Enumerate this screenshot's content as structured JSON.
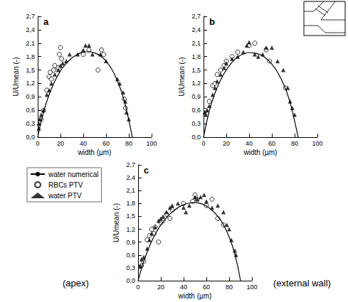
{
  "chart_data": [
    {
      "type": "scatter",
      "title": "a",
      "xlabel": "width (µm)",
      "ylabel": "U/Umean (-)",
      "xlim": [
        0,
        100
      ],
      "xticks": [
        0,
        20,
        40,
        60,
        80,
        100
      ],
      "ylim": [
        0,
        2.7
      ],
      "yticks": [
        {
          "value": 0,
          "label": "0,0"
        },
        {
          "value": 0.3,
          "label": "0,3"
        },
        {
          "value": 0.6,
          "label": "0,6"
        },
        {
          "value": 0.9,
          "label": "0,9"
        },
        {
          "value": 1.2,
          "label": "1,2"
        },
        {
          "value": 1.5,
          "label": "1,5"
        },
        {
          "value": 1.8,
          "label": "1,8"
        },
        {
          "value": 2.1,
          "label": "2,1"
        },
        {
          "value": 2.4,
          "label": "2,4"
        },
        {
          "value": 2.7,
          "label": "2,7"
        }
      ],
      "grid": false,
      "series": [
        {
          "name": "water numerical",
          "type": "line",
          "color": "#000000",
          "line_style": "solid",
          "x": [
            0,
            5,
            10,
            15,
            20,
            25,
            30,
            35,
            40,
            45,
            50,
            55,
            60,
            65,
            70,
            75,
            80,
            83
          ],
          "values": [
            0,
            0.55,
            0.95,
            1.25,
            1.48,
            1.65,
            1.77,
            1.85,
            1.9,
            1.91,
            1.88,
            1.82,
            1.7,
            1.52,
            1.25,
            0.9,
            0.38,
            0
          ]
        },
        {
          "name": "RBCs PTV",
          "type": "scatter",
          "color": "#000000",
          "marker": "open circle",
          "x": [
            3,
            5,
            8,
            10,
            11,
            12,
            14,
            15,
            18,
            19,
            20,
            21,
            40,
            45,
            53,
            56,
            58,
            76,
            77
          ],
          "values": [
            0.4,
            0.6,
            1.05,
            1.35,
            1.45,
            1.3,
            1.5,
            1.6,
            1.55,
            1.85,
            2.0,
            1.75,
            1.85,
            1.95,
            1.5,
            1.95,
            1.85,
            0.85,
            0.65
          ]
        },
        {
          "name": "water PTV",
          "type": "scatter",
          "color": "#000000",
          "marker": "filled triangle",
          "x": [
            1,
            1,
            2,
            3,
            5,
            8,
            10,
            12,
            15,
            18,
            20,
            22,
            25,
            28,
            35,
            40,
            42,
            45,
            48,
            55,
            60,
            70,
            72,
            75,
            77,
            78,
            80
          ],
          "values": [
            0.3,
            0.2,
            0.4,
            0.5,
            0.6,
            0.95,
            1.05,
            1.2,
            1.4,
            1.5,
            1.6,
            1.65,
            1.7,
            1.85,
            1.85,
            1.95,
            2.05,
            2.05,
            1.85,
            1.85,
            1.7,
            1.3,
            1.2,
            1.0,
            0.8,
            0.55,
            0.4
          ]
        }
      ]
    },
    {
      "type": "scatter",
      "title": "b",
      "xlabel": "width (µm)",
      "ylabel": "U/Umean (-)",
      "xlim": [
        0,
        100
      ],
      "xticks": [
        0,
        20,
        40,
        60,
        80,
        100
      ],
      "ylim": [
        0,
        2.7
      ],
      "yticks": [
        {
          "value": 0,
          "label": "0,0"
        },
        {
          "value": 0.3,
          "label": "0,3"
        },
        {
          "value": 0.6,
          "label": "0,6"
        },
        {
          "value": 0.9,
          "label": "0,9"
        },
        {
          "value": 1.2,
          "label": "1,2"
        },
        {
          "value": 1.5,
          "label": "1,5"
        },
        {
          "value": 1.8,
          "label": "1,8"
        },
        {
          "value": 2.1,
          "label": "2,1"
        },
        {
          "value": 2.4,
          "label": "2,4"
        },
        {
          "value": 2.7,
          "label": "2,7"
        }
      ],
      "grid": false,
      "series": [
        {
          "name": "water numerical",
          "type": "line",
          "color": "#000000",
          "line_style": "solid",
          "x": [
            0,
            5,
            10,
            15,
            20,
            25,
            30,
            35,
            40,
            45,
            50,
            55,
            60,
            65,
            70,
            75,
            80,
            83
          ],
          "values": [
            0,
            0.58,
            0.98,
            1.28,
            1.5,
            1.67,
            1.79,
            1.86,
            1.89,
            1.88,
            1.84,
            1.76,
            1.63,
            1.45,
            1.2,
            0.86,
            0.36,
            0
          ]
        },
        {
          "name": "RBCs PTV",
          "type": "scatter",
          "color": "#000000",
          "marker": "open circle",
          "x": [
            2,
            5,
            8,
            10,
            12,
            15,
            18,
            20,
            25,
            30,
            40,
            45,
            55,
            58,
            72
          ],
          "values": [
            0.6,
            0.8,
            1.15,
            1.2,
            1.4,
            1.5,
            1.6,
            1.7,
            1.8,
            1.9,
            2.05,
            2.1,
            1.95,
            1.7,
            1.1
          ]
        },
        {
          "name": "water PTV",
          "type": "scatter",
          "color": "#000000",
          "marker": "filled triangle",
          "x": [
            1,
            2,
            3,
            5,
            8,
            10,
            12,
            15,
            18,
            20,
            25,
            30,
            35,
            38,
            40,
            45,
            48,
            52,
            55,
            60,
            65,
            70,
            74,
            76,
            78,
            80
          ],
          "values": [
            0.55,
            0.5,
            0.6,
            0.7,
            0.95,
            1.1,
            1.25,
            1.4,
            1.55,
            1.65,
            1.75,
            1.8,
            1.9,
            2.05,
            2.12,
            1.85,
            1.8,
            1.85,
            2.0,
            2.0,
            1.7,
            1.5,
            1.1,
            0.8,
            0.65,
            0.5
          ]
        }
      ]
    },
    {
      "type": "scatter",
      "title": "c",
      "xlabel": "width (µm)",
      "ylabel": "U/Umean (-)",
      "xlim": [
        0,
        100
      ],
      "xticks": [
        0,
        20,
        40,
        60,
        80,
        100
      ],
      "ylim": [
        0,
        2.7
      ],
      "yticks": [
        {
          "value": 0,
          "label": "0,0"
        },
        {
          "value": 0.3,
          "label": "0,3"
        },
        {
          "value": 0.6,
          "label": "0,6"
        },
        {
          "value": 0.9,
          "label": "0,9"
        },
        {
          "value": 1.2,
          "label": "1,2"
        },
        {
          "value": 1.5,
          "label": "1,5"
        },
        {
          "value": 1.8,
          "label": "1,8"
        },
        {
          "value": 2.1,
          "label": "2,1"
        },
        {
          "value": 2.4,
          "label": "2,4"
        },
        {
          "value": 2.7,
          "label": "2,7"
        }
      ],
      "grid": false,
      "legend": "left",
      "annotations": [
        "(apex)",
        "(external wall)"
      ],
      "series": [
        {
          "name": "water numerical",
          "type": "line",
          "color": "#000000",
          "line_style": "solid",
          "x": [
            0,
            5,
            10,
            15,
            20,
            25,
            30,
            35,
            40,
            45,
            50,
            55,
            60,
            65,
            70,
            75,
            80,
            85,
            90
          ],
          "values": [
            0,
            0.45,
            0.8,
            1.08,
            1.3,
            1.47,
            1.6,
            1.7,
            1.77,
            1.81,
            1.82,
            1.8,
            1.74,
            1.64,
            1.5,
            1.3,
            1.02,
            0.62,
            0
          ]
        },
        {
          "name": "RBCs PTV",
          "type": "scatter",
          "color": "#000000",
          "marker": "open circle",
          "x": [
            3,
            5,
            8,
            10,
            12,
            14,
            15,
            18,
            20,
            22,
            25,
            28,
            30,
            40,
            48,
            50,
            52,
            60,
            65,
            70,
            75
          ],
          "values": [
            0.35,
            0.45,
            0.95,
            1.05,
            1.2,
            1.1,
            1.25,
            0.9,
            1.35,
            1.4,
            1.55,
            1.45,
            1.65,
            1.8,
            1.85,
            2.0,
            1.9,
            1.75,
            1.9,
            1.45,
            1.3
          ]
        },
        {
          "name": "water PTV",
          "type": "scatter",
          "color": "#000000",
          "marker": "filled triangle",
          "x": [
            2,
            3,
            5,
            8,
            10,
            12,
            15,
            18,
            20,
            22,
            25,
            28,
            30,
            35,
            40,
            42,
            45,
            50,
            52,
            55,
            58,
            60,
            65,
            70,
            75,
            78,
            80,
            82,
            85,
            86
          ],
          "values": [
            0.35,
            0.5,
            0.55,
            0.75,
            0.95,
            1.1,
            1.25,
            1.4,
            1.45,
            1.5,
            1.6,
            1.7,
            1.75,
            1.8,
            1.7,
            1.6,
            1.75,
            1.95,
            1.9,
            1.95,
            2.0,
            1.85,
            1.7,
            1.75,
            1.6,
            1.3,
            1.2,
            0.95,
            0.7,
            0.6
          ]
        }
      ]
    }
  ]
}
